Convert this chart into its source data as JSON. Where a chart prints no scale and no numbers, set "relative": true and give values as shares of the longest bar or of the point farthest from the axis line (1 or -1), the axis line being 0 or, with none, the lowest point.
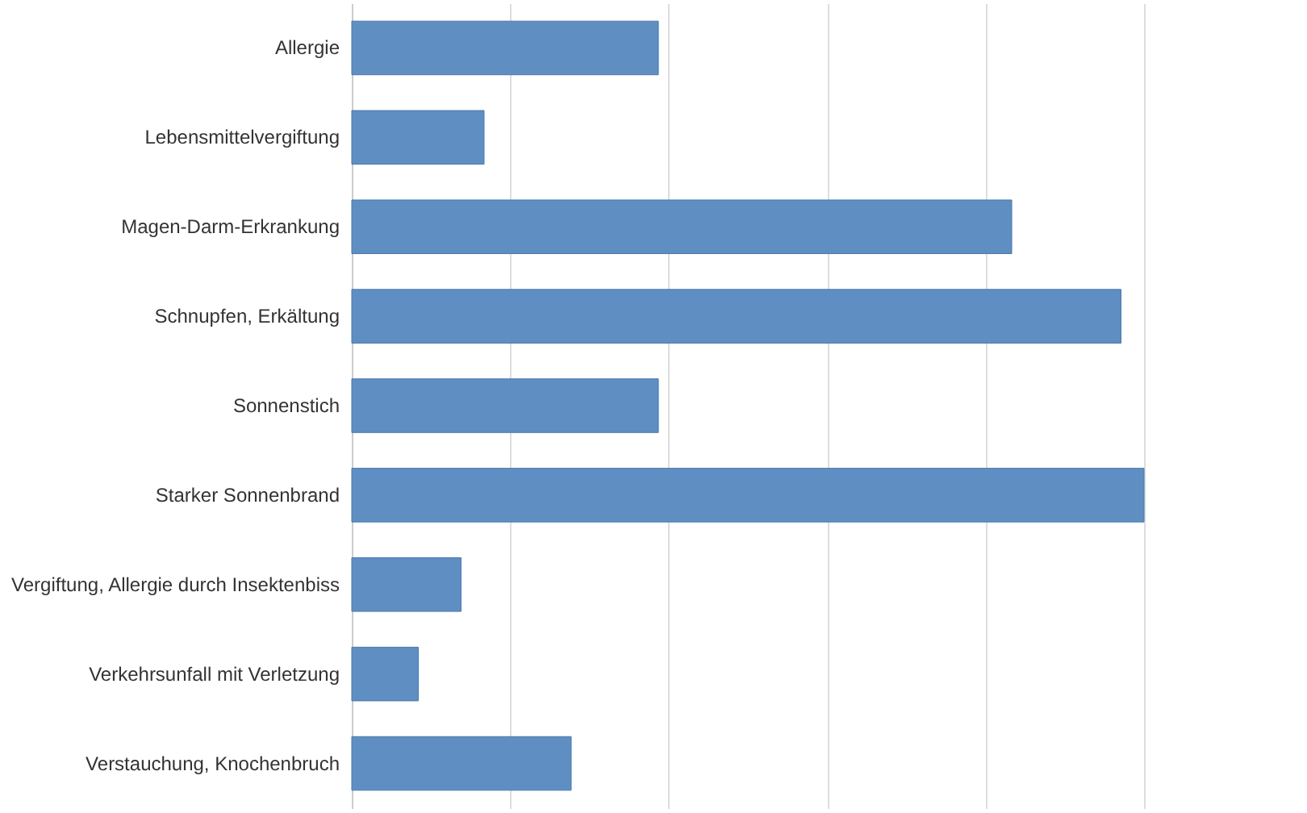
{
  "chart_data": {
    "type": "bar",
    "orientation": "horizontal",
    "relative": true,
    "grid": "x",
    "categories": [
      "Allergie",
      "Lebensmittelvergiftung",
      "Magen-Darm-Erkrankung",
      "Schnupfen, Erkältung",
      "Sonnenstich",
      "Starker Sonnenbrand",
      "Vergiftung, Allergie durch Insektenbiss",
      "Verkehrsunfall mit Verletzung",
      "Verstauchung, Knochenbruch"
    ],
    "values": [
      0.387,
      0.167,
      0.833,
      0.971,
      0.387,
      1,
      0.138,
      0.084,
      0.277
    ],
    "color": "#5f8fc2"
  }
}
